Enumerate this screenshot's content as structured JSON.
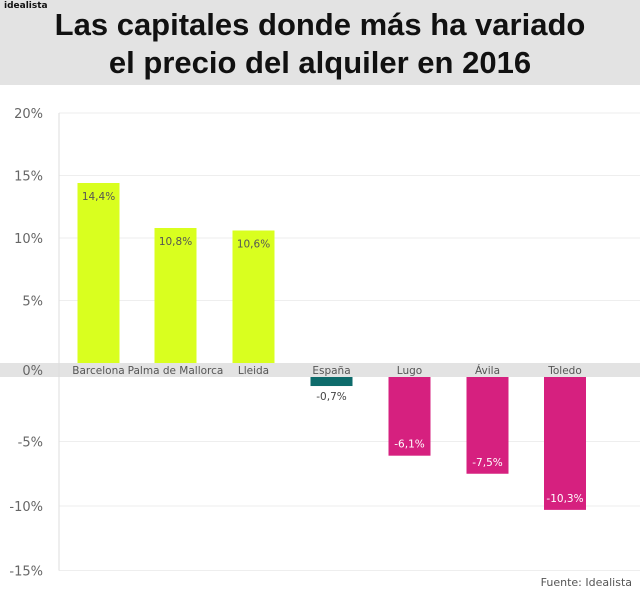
{
  "brand": "idealista",
  "title_lines": [
    "Las capitales donde más ha variado",
    "el precio del alquiler en 2016"
  ],
  "source": "Fuente: Idealista",
  "chart_data": {
    "type": "bar",
    "title": "Las capitales donde más ha variado el precio del alquiler en 2016",
    "xlabel": "",
    "ylabel": "",
    "categories": [
      "Barcelona",
      "Palma de Mallorca",
      "Lleida",
      "España",
      "Lugo",
      "Ávila",
      "Toledo"
    ],
    "values": [
      14.4,
      10.8,
      10.6,
      -0.7,
      -6.1,
      -7.5,
      -10.3
    ],
    "value_labels": [
      "14,4%",
      "10,8%",
      "10,6%",
      "-0,7%",
      "-6,1%",
      "-7,5%",
      "-10,3%"
    ],
    "bar_colors": [
      "#d9ff1f",
      "#d9ff1f",
      "#d9ff1f",
      "#0e6b6b",
      "#d6207f",
      "#d6207f",
      "#d6207f"
    ],
    "ylim": [
      -15,
      20
    ],
    "yticks": [
      20,
      15,
      10,
      5,
      0,
      -5,
      -10,
      -15
    ],
    "ytick_labels": [
      "20%",
      "15%",
      "10%",
      "5%",
      "0%",
      "-5%",
      "-10%",
      "-15%"
    ],
    "grid": true,
    "zero_band_color": "#e3e3e3"
  }
}
